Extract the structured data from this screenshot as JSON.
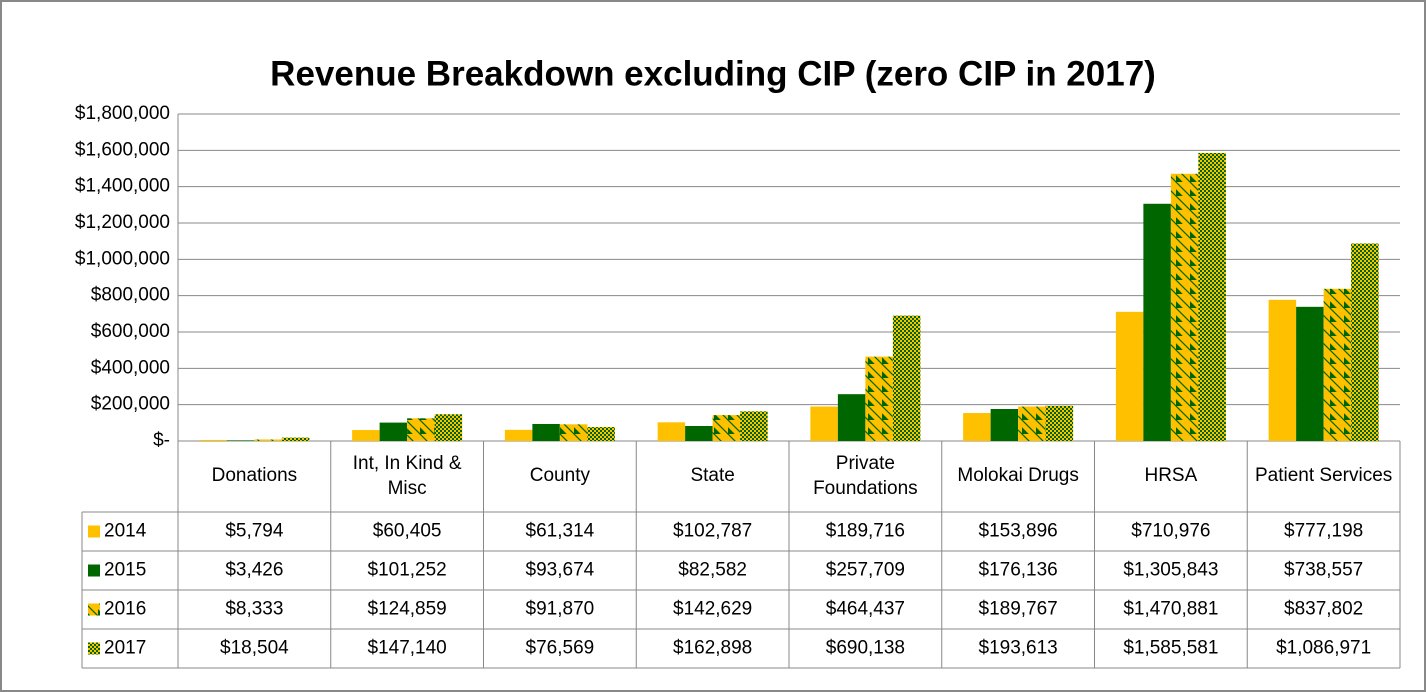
{
  "chart_data": {
    "type": "bar",
    "title": "Revenue Breakdown excluding CIP (zero CIP in 2017)",
    "categories": [
      "Donations",
      "Int, In Kind & Misc",
      "County",
      "State",
      "Private Foundations",
      "Molokai Drugs",
      "HRSA",
      "Patient Services"
    ],
    "series": [
      {
        "name": "2014",
        "color": "#ffc000",
        "values": [
          5794,
          60405,
          61314,
          102787,
          189716,
          153896,
          710976,
          777198
        ],
        "value_labels": [
          "$5,794",
          "$60,405",
          "$61,314",
          "$102,787",
          "$189,716",
          "$153,896",
          "$710,976",
          "$777,198"
        ]
      },
      {
        "name": "2015",
        "color": "#006600",
        "values": [
          3426,
          101252,
          93674,
          82582,
          257709,
          176136,
          1305843,
          738557
        ],
        "value_labels": [
          "$3,426",
          "$101,252",
          "$93,674",
          "$82,582",
          "$257,709",
          "$176,136",
          "$1,305,843",
          "$738,557"
        ]
      },
      {
        "name": "2016",
        "color": "#006600",
        "pattern": "stripes",
        "pattern_color": "#ffc000",
        "values": [
          8333,
          124859,
          91870,
          142629,
          464437,
          189767,
          1470881,
          837802
        ],
        "value_labels": [
          "$8,333",
          "$124,859",
          "$91,870",
          "$142,629",
          "$464,437",
          "$189,767",
          "$1,470,881",
          "$837,802"
        ]
      },
      {
        "name": "2017",
        "color": "#006600",
        "pattern": "checker",
        "pattern_color": "#ffc000",
        "values": [
          18504,
          147140,
          76569,
          162898,
          690138,
          193613,
          1585581,
          1086971
        ],
        "value_labels": [
          "$18,504",
          "$147,140",
          "$76,569",
          "$162,898",
          "$690,138",
          "$193,613",
          "$1,585,581",
          "$1,086,971"
        ]
      }
    ],
    "ylim": [
      0,
      1800000
    ],
    "yticks": [
      {
        "value": 0,
        "label": "$-"
      },
      {
        "value": 200000,
        "label": "$200,000"
      },
      {
        "value": 400000,
        "label": "$400,000"
      },
      {
        "value": 600000,
        "label": "$600,000"
      },
      {
        "value": 800000,
        "label": "$800,000"
      },
      {
        "value": 1000000,
        "label": "$1,000,000"
      },
      {
        "value": 1200000,
        "label": "$1,200,000"
      },
      {
        "value": 1400000,
        "label": "$1,400,000"
      },
      {
        "value": 1600000,
        "label": "$1,600,000"
      },
      {
        "value": 1800000,
        "label": "$1,800,000"
      }
    ],
    "grid": true
  }
}
